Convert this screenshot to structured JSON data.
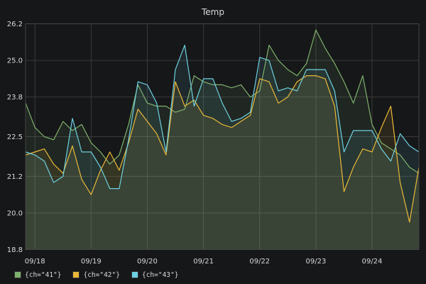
{
  "chart_data": {
    "type": "area",
    "title": "Temp",
    "xlabel": "",
    "ylabel": "",
    "x_ticks": [
      "09/18",
      "09/19",
      "09/20",
      "09/21",
      "09/22",
      "09/23",
      "09/24"
    ],
    "y_ticks": [
      "18.8",
      "20.0",
      "21.2",
      "22.5",
      "23.8",
      "25.0",
      "26.2"
    ],
    "ylim": [
      18.8,
      26.2
    ],
    "grid": true,
    "legend_position": "bottom-left",
    "x": [
      "09/17 20:00",
      "09/18 00:00",
      "09/18 04:00",
      "09/18 08:00",
      "09/18 12:00",
      "09/18 16:00",
      "09/18 20:00",
      "09/19 00:00",
      "09/19 04:00",
      "09/19 08:00",
      "09/19 12:00",
      "09/19 16:00",
      "09/19 20:00",
      "09/20 00:00",
      "09/20 04:00",
      "09/20 08:00",
      "09/20 12:00",
      "09/20 16:00",
      "09/20 20:00",
      "09/21 00:00",
      "09/21 04:00",
      "09/21 08:00",
      "09/21 12:00",
      "09/21 16:00",
      "09/21 20:00",
      "09/22 00:00",
      "09/22 04:00",
      "09/22 08:00",
      "09/22 12:00",
      "09/22 16:00",
      "09/22 20:00",
      "09/23 00:00",
      "09/23 04:00",
      "09/23 08:00",
      "09/23 12:00",
      "09/23 16:00",
      "09/23 20:00",
      "09/24 00:00",
      "09/24 04:00",
      "09/24 08:00",
      "09/24 12:00",
      "09/24 16:00",
      "09/24 20:00"
    ],
    "series": [
      {
        "name": "{ch=\"41\"}",
        "color": "#7eb26d",
        "values": [
          23.6,
          22.8,
          22.5,
          22.4,
          23.0,
          22.7,
          22.9,
          22.3,
          22.0,
          21.6,
          21.9,
          22.9,
          24.2,
          23.6,
          23.5,
          23.5,
          23.3,
          23.4,
          24.5,
          24.3,
          24.2,
          24.2,
          24.1,
          24.2,
          23.8,
          24.0,
          25.5,
          25.0,
          24.7,
          24.5,
          24.9,
          26.0,
          25.4,
          24.9,
          24.3,
          23.6,
          24.5,
          22.9,
          22.3,
          22.1,
          21.9,
          21.5,
          21.3
        ]
      },
      {
        "name": "{ch=\"42\"}",
        "color": "#eab839",
        "values": [
          21.9,
          22.0,
          22.1,
          21.6,
          21.3,
          22.2,
          21.1,
          20.6,
          21.4,
          22.0,
          21.4,
          22.3,
          23.4,
          23.0,
          22.6,
          21.9,
          24.3,
          23.5,
          23.7,
          23.2,
          23.1,
          22.9,
          22.8,
          23.0,
          23.2,
          24.4,
          24.3,
          23.6,
          23.8,
          24.3,
          24.5,
          24.5,
          24.4,
          23.5,
          20.7,
          21.5,
          22.1,
          22.0,
          22.8,
          23.5,
          21.0,
          19.7,
          21.5
        ]
      },
      {
        "name": "{ch=\"43\"}",
        "color": "#6ed0e0",
        "values": [
          22.0,
          21.9,
          21.7,
          21.0,
          21.2,
          23.1,
          22.0,
          22.0,
          21.5,
          20.8,
          20.8,
          22.4,
          24.3,
          24.2,
          23.6,
          22.0,
          24.7,
          25.5,
          23.5,
          24.4,
          24.4,
          23.6,
          23.0,
          23.1,
          23.3,
          25.1,
          25.0,
          24.0,
          24.1,
          24.0,
          24.7,
          24.7,
          24.7,
          24.0,
          22.0,
          22.7,
          22.7,
          22.7,
          22.1,
          21.7,
          22.6,
          22.2,
          22.0
        ]
      }
    ]
  }
}
